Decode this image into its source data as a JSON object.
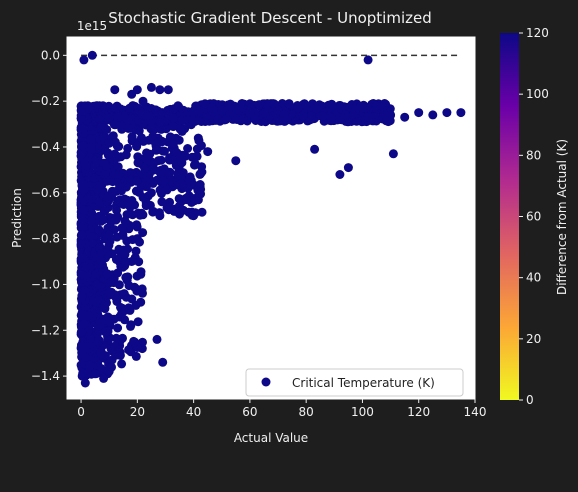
{
  "chart_data": {
    "type": "scatter",
    "title": "Stochastic Gradient Descent - Unoptimized",
    "xlabel": "Actual Value",
    "ylabel": "Prediction",
    "y_offset_label": "1e15",
    "xlim": [
      -5,
      140
    ],
    "ylim": [
      -1.5,
      0.08
    ],
    "xticks": [
      "0",
      "20",
      "40",
      "60",
      "80",
      "100",
      "120",
      "140"
    ],
    "xtick_values": [
      0,
      20,
      40,
      60,
      80,
      100,
      120,
      140
    ],
    "yticks": [
      "0.0",
      "−0.2",
      "−0.4",
      "−0.6",
      "−0.8",
      "−1.0",
      "−1.2",
      "−1.4"
    ],
    "ytick_values": [
      0,
      -0.2,
      -0.4,
      -0.6,
      -0.8,
      -1.0,
      -1.2,
      -1.4
    ],
    "marker_color": "#0d0887",
    "reference_line": {
      "x": [
        0,
        135
      ],
      "y": [
        0,
        0
      ],
      "style": "dashed",
      "color": "#333333"
    },
    "legend": {
      "label": "Critical Temperature (K)",
      "placement": "lower-right"
    },
    "colorbar": {
      "label": "Difference from Actual (K)",
      "range": [
        0,
        120
      ],
      "ticks": [
        "0",
        "20",
        "40",
        "60",
        "80",
        "100",
        "120"
      ],
      "tick_values": [
        0,
        20,
        40,
        60,
        80,
        100,
        120
      ],
      "colormap": [
        "#f0f921",
        "#fca636",
        "#e16462",
        "#b12a90",
        "#6a00a8",
        "#0d0887"
      ]
    },
    "points": [
      [
        1,
        -0.02
      ],
      [
        4,
        0.0
      ],
      [
        102,
        -0.02
      ],
      [
        0.5,
        -1.27
      ],
      [
        1.5,
        -1.43
      ],
      [
        3,
        -1.36
      ],
      [
        5,
        -1.39
      ],
      [
        7,
        -1.3
      ],
      [
        8,
        -1.41
      ],
      [
        10,
        -1.38
      ],
      [
        27,
        -1.24
      ],
      [
        29,
        -1.34
      ],
      [
        12,
        -0.15
      ],
      [
        20,
        -0.15
      ],
      [
        25,
        -0.14
      ],
      [
        28,
        -0.15
      ],
      [
        31,
        -0.15
      ],
      [
        18,
        -0.17
      ],
      [
        22,
        -0.2
      ],
      [
        40,
        -0.25
      ],
      [
        50,
        -0.24
      ],
      [
        60,
        -0.25
      ],
      [
        70,
        -0.24
      ],
      [
        80,
        -0.22
      ],
      [
        90,
        -0.23
      ],
      [
        100,
        -0.23
      ],
      [
        110,
        -0.26
      ],
      [
        115,
        -0.27
      ],
      [
        120,
        -0.25
      ],
      [
        125,
        -0.26
      ],
      [
        130,
        -0.25
      ],
      [
        135,
        -0.25
      ],
      [
        105,
        -0.22
      ],
      [
        83,
        -0.41
      ],
      [
        95,
        -0.49
      ],
      [
        92,
        -0.52
      ],
      [
        111,
        -0.43
      ],
      [
        55,
        -0.46
      ],
      [
        45,
        -0.42
      ],
      [
        35,
        -0.45
      ],
      [
        32,
        -0.55
      ],
      [
        25,
        -0.6
      ],
      [
        22,
        -0.62
      ],
      [
        38,
        -0.58
      ],
      [
        42,
        -0.6
      ],
      [
        35,
        -0.67
      ],
      [
        40,
        -0.7
      ],
      [
        28,
        -0.7
      ],
      [
        20,
        -0.8
      ],
      [
        15,
        -0.85
      ],
      [
        18,
        -0.9
      ],
      [
        13,
        -0.95
      ],
      [
        12,
        -1.05
      ],
      [
        14,
        -1.1
      ],
      [
        13,
        -1.19
      ],
      [
        12,
        -1.27
      ],
      [
        11,
        -1.33
      ]
    ]
  }
}
